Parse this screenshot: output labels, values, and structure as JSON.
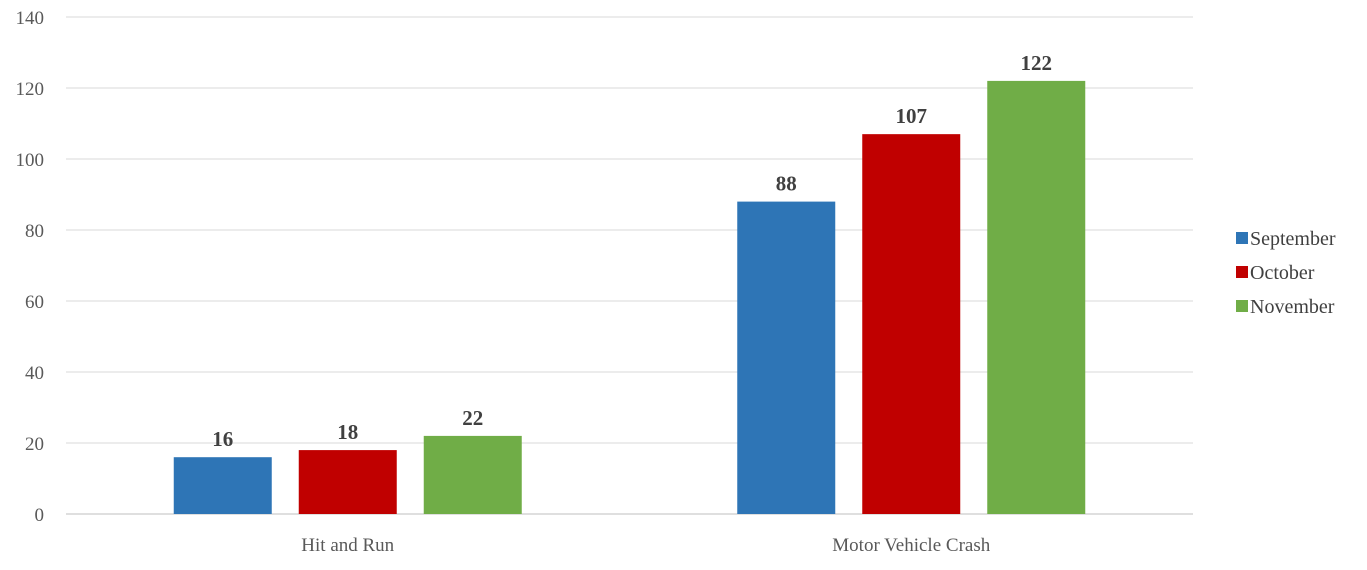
{
  "chart_data": {
    "type": "bar",
    "title": "",
    "xlabel": "",
    "ylabel": "",
    "categories": [
      "Hit and Run",
      "Motor Vehicle Crash"
    ],
    "series": [
      {
        "name": "September",
        "values": [
          16,
          88
        ],
        "color": "#2E75B6"
      },
      {
        "name": "October",
        "values": [
          18,
          107
        ],
        "color": "#C00000"
      },
      {
        "name": "November",
        "values": [
          22,
          122
        ],
        "color": "#70AD47"
      }
    ],
    "ylim": [
      0,
      140
    ],
    "yticks": [
      0,
      20,
      40,
      60,
      80,
      100,
      120,
      140
    ],
    "grid": true,
    "legend": "right",
    "data_labels": true
  }
}
